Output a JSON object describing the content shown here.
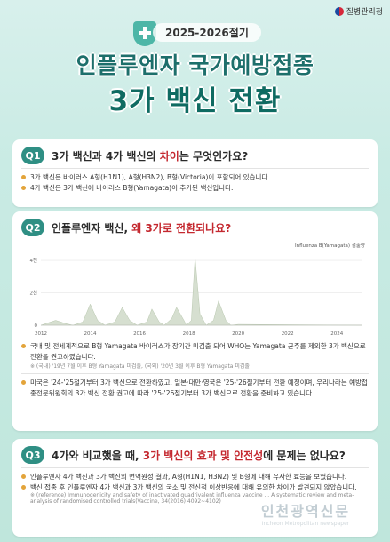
{
  "header": {
    "org": "질병관리청",
    "season": "2025-2026절기",
    "title_line1": "인플루엔자 국가예방접종",
    "title_line2": "3가 백신 전환"
  },
  "q1": {
    "badge": "Q1",
    "title_pre": "3가 백신과 4가 백신의 ",
    "title_hl": "차이",
    "title_post": "는 무엇인가요?",
    "items": [
      "3가 백신은 바이러스 A형(H1N1), A형(H3N2), B형(Victoria)이 포함되어 있습니다.",
      "4가 백신은 3가 백신에 바이러스 B형(Yamagata)이 추가된 백신입니다."
    ]
  },
  "q2": {
    "badge": "Q2",
    "title_pre": "인플루엔자 백신, ",
    "title_hl": "왜 3가로 전환되나요?",
    "legend": "Influenza B(Yamagata) 검출량",
    "items": [
      "국내 및 전세계적으로 B형 Yamagata 바이러스가 장기간 미검출 되어 WHO는 Yamagata 균주를 제외한 3가 백신으로 전환을 권고하였습니다.",
      "미국은 '24-'25절기부터 3가 백신으로 전환하였고, 일본·대만·영국은 '25-'26절기부터 전환 예정이며, 우리나라는 예방접종전문위원회의 3가 백신 전환 권고에 따라 '25-'26절기부터 3가 백신으로 전환을 준비하고 있습니다."
    ],
    "note": "※ (국내) '19년 7월 이후 B형 Yamagata 미검출, (국외) '20년 3월 이후 B형 Yamagata 미검출"
  },
  "q3": {
    "badge": "Q3",
    "title_pre": "4가와 비교했을 때, ",
    "title_hl": "3가 백신의 효과 및 안전성",
    "title_post": "에 문제는 없나요?",
    "items": [
      "인플루엔자 4가 백신과 3가 백신의 면역원성 결과, A형(H1N1, H3N2) 및 B형에 대해 유사한 효능을 보였습니다.",
      "백신 접종 후 인플루엔자 4가 백신과 3가 백신의 국소 및 전신적 이상반응에 대해 유의한 차이가 발견되지 않았습니다."
    ],
    "reference": "※ (reference) Immunogenicity and safety of inactivated quadrivalent influenza vaccine ... A systematic review and meta-analysis of randomised controlled trials(Vaccine, 34(2016) 4092~4102)"
  },
  "watermark": {
    "main": "인천광역신문",
    "sub": "Incheon Metropolitan newspaper"
  },
  "chart_data": {
    "type": "area",
    "legend": "Influenza B(Yamagata) 검출량",
    "x_ticks": [
      "2012",
      "2014",
      "2016",
      "2018",
      "2020",
      "2022",
      "2024"
    ],
    "y_ticks": [
      "0",
      "2천",
      "4천"
    ],
    "x_range": [
      2012,
      2025
    ],
    "ylim": [
      0,
      4500
    ],
    "series": [
      {
        "name": "Influenza B(Yamagata) 검출량",
        "color": "#d6dfd0",
        "points": [
          [
            2012.0,
            0
          ],
          [
            2012.6,
            300
          ],
          [
            2013.0,
            100
          ],
          [
            2013.3,
            0
          ],
          [
            2013.7,
            200
          ],
          [
            2014.0,
            1300
          ],
          [
            2014.3,
            300
          ],
          [
            2014.6,
            0
          ],
          [
            2015.0,
            200
          ],
          [
            2015.3,
            1100
          ],
          [
            2015.6,
            300
          ],
          [
            2015.9,
            0
          ],
          [
            2016.3,
            200
          ],
          [
            2016.5,
            1000
          ],
          [
            2016.8,
            200
          ],
          [
            2017.0,
            0
          ],
          [
            2017.3,
            400
          ],
          [
            2017.5,
            1100
          ],
          [
            2017.8,
            300
          ],
          [
            2017.9,
            0
          ],
          [
            2018.1,
            300
          ],
          [
            2018.25,
            4200
          ],
          [
            2018.45,
            700
          ],
          [
            2018.7,
            0
          ],
          [
            2019.0,
            300
          ],
          [
            2019.2,
            1500
          ],
          [
            2019.5,
            300
          ],
          [
            2019.7,
            0
          ],
          [
            2020.0,
            50
          ],
          [
            2025.0,
            0
          ]
        ]
      }
    ]
  }
}
